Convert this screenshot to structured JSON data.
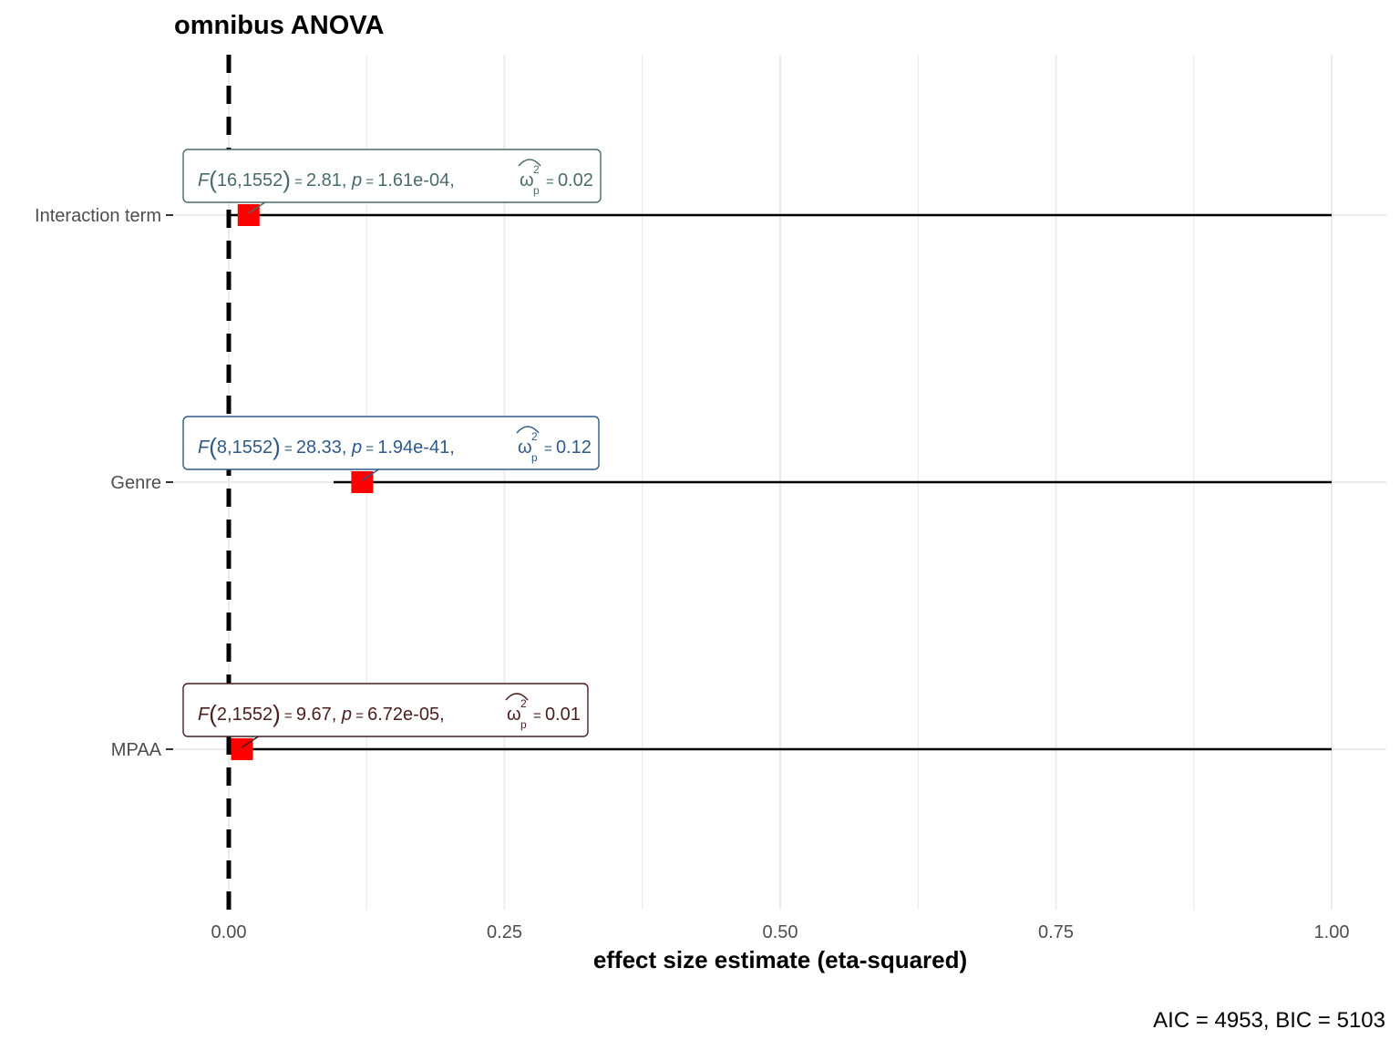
{
  "chart_data": {
    "type": "scatter",
    "title": "omnibus ANOVA",
    "xlabel": "effect size estimate (eta-squared)",
    "ylabel": "",
    "caption": "AIC = 4953, BIC = 5103",
    "xlim": [
      0,
      1
    ],
    "xticks": [
      "0.00",
      "0.25",
      "0.50",
      "0.75",
      "1.00"
    ],
    "xtick_values": [
      0,
      0.25,
      0.5,
      0.75,
      1
    ],
    "reference_line": 0,
    "grid": true,
    "categories": [
      "Interaction term",
      "Genre",
      "MPAA"
    ],
    "estimates": [
      {
        "term": "Interaction term",
        "estimate": 0.018,
        "conf_low": 0.0,
        "conf_high": 1.0,
        "label": {
          "stat": "F",
          "df": "16,1552",
          "statistic": "2.81",
          "p": "1.61e-04",
          "effsize": "0.02"
        },
        "color": "#4a6b6b"
      },
      {
        "term": "Genre",
        "estimate": 0.121,
        "conf_low": 0.095,
        "conf_high": 1.0,
        "label": {
          "stat": "F",
          "df": "8,1552",
          "statistic": "28.33",
          "p": "1.94e-41",
          "effsize": "0.12"
        },
        "color": "#2f5a8a"
      },
      {
        "term": "MPAA",
        "estimate": 0.012,
        "conf_low": 0.0,
        "conf_high": 1.0,
        "label": {
          "stat": "F",
          "df": "2,1552",
          "statistic": "9.67",
          "p": "6.72e-05",
          "effsize": "0.01"
        },
        "color": "#4a1e1e"
      }
    ],
    "point_color": "#ff0000"
  }
}
